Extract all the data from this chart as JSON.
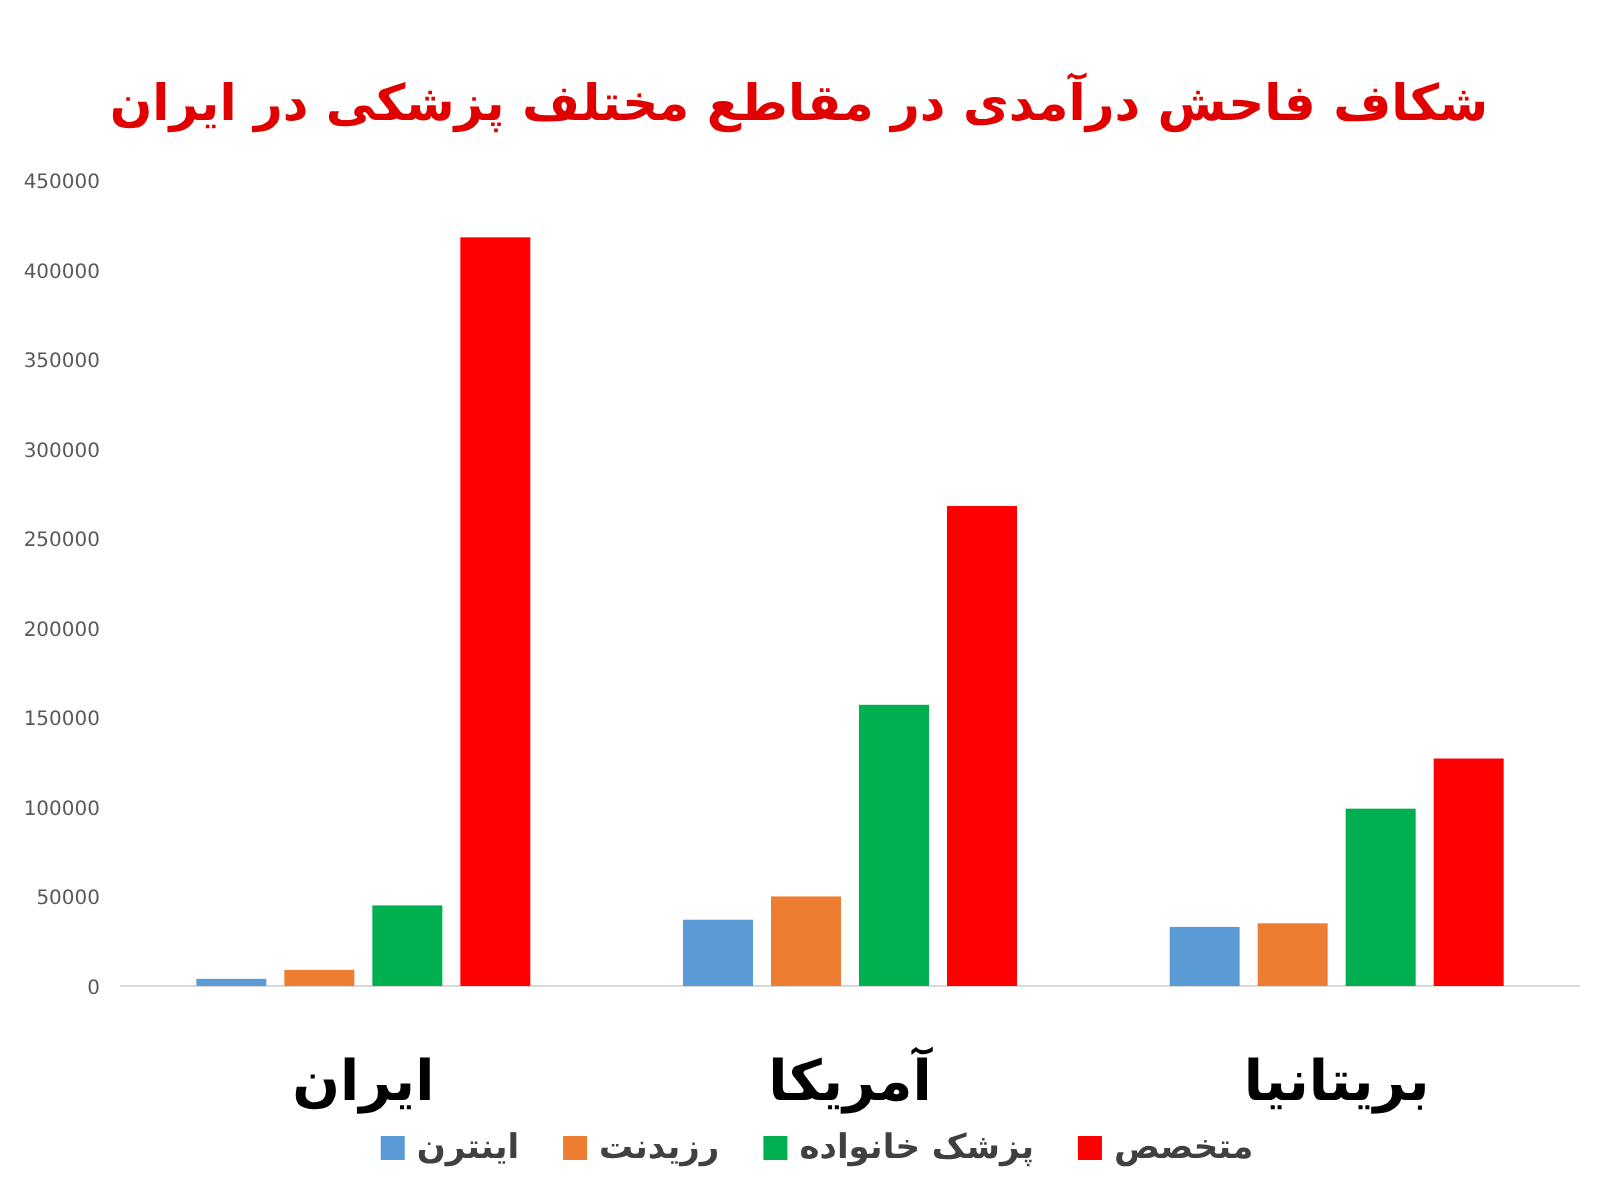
{
  "chart_data": {
    "type": "bar",
    "title": "شکاف فاحش درآمدی در مقاطع مختلف پزشکی در ایران",
    "categories": [
      "ایران",
      "آمریکا",
      "بریتانیا"
    ],
    "series": [
      {
        "name": "اینترن",
        "color": "#5b9bd5",
        "values": [
          4000,
          37000,
          33000
        ]
      },
      {
        "name": "رزیدنت",
        "color": "#ed7d31",
        "values": [
          9000,
          50000,
          35000
        ]
      },
      {
        "name": "پزشک خانواده",
        "color": "#00b050",
        "values": [
          45000,
          157000,
          99000
        ]
      },
      {
        "name": "متخصص",
        "color": "#ff0000",
        "values": [
          418000,
          268000,
          127000
        ]
      }
    ],
    "ylim": [
      0,
      450000
    ],
    "yticks": [
      0,
      50000,
      100000,
      150000,
      200000,
      250000,
      300000,
      350000,
      400000,
      450000
    ],
    "legend": "bottom"
  }
}
